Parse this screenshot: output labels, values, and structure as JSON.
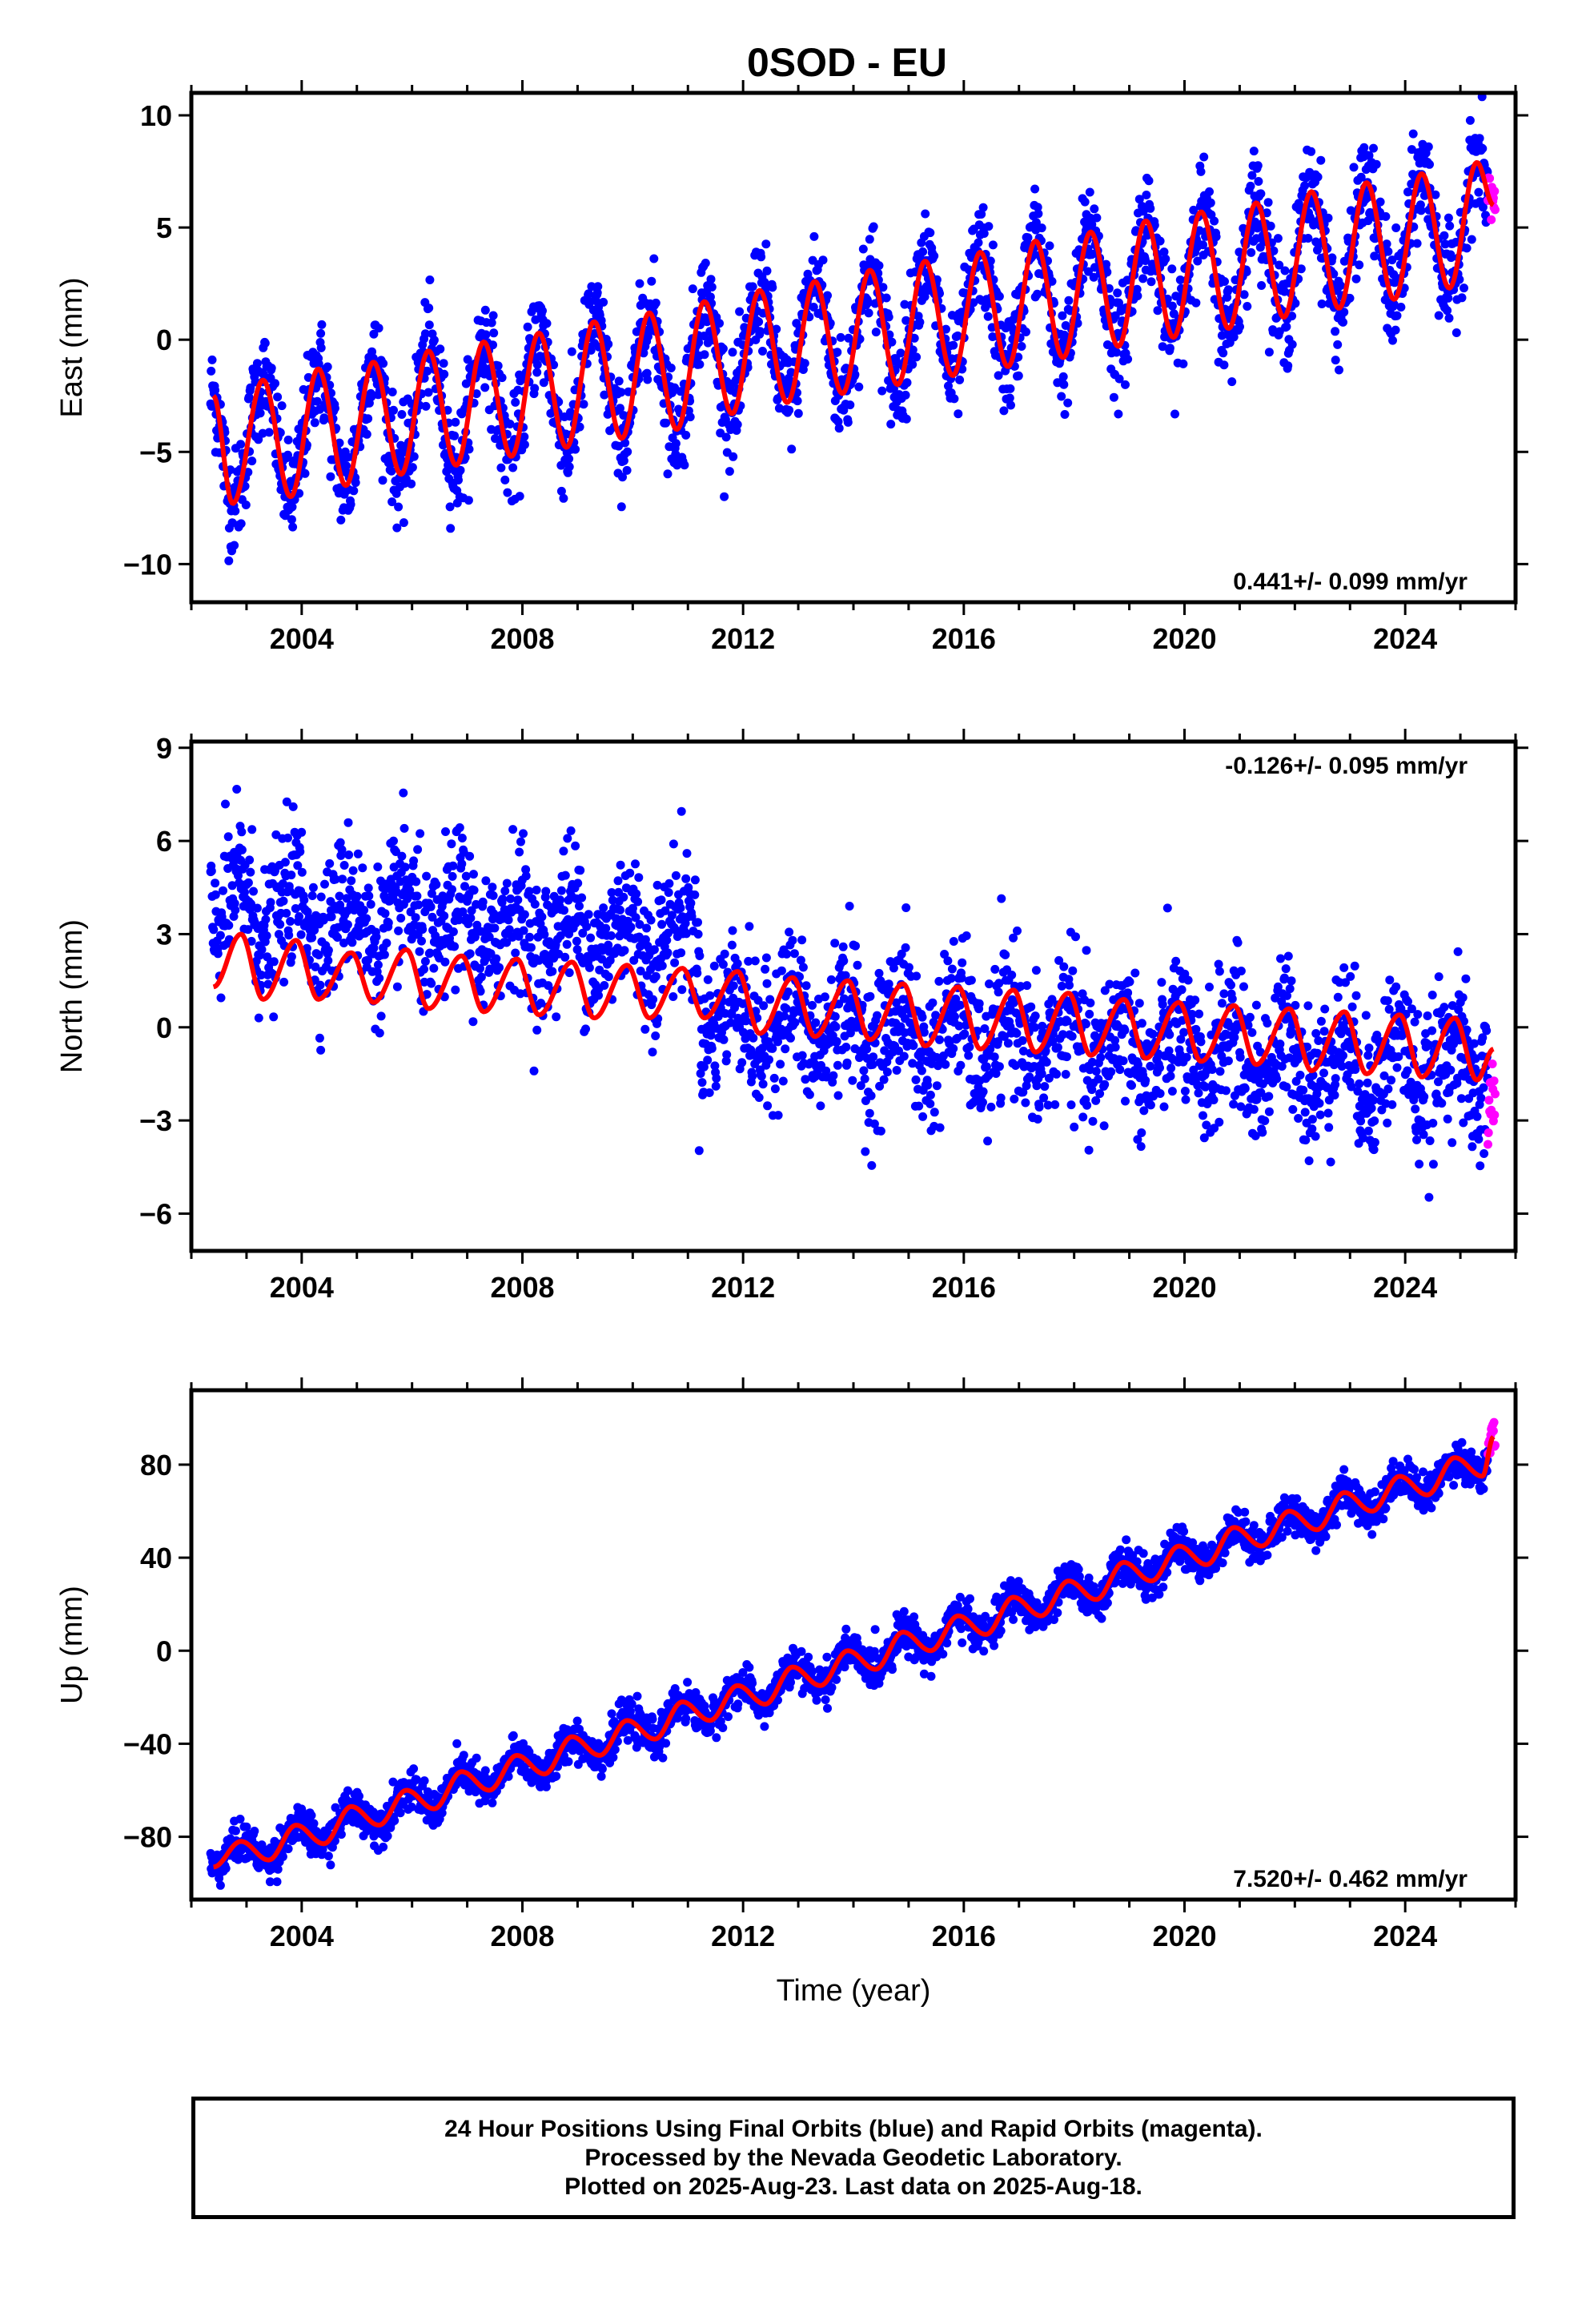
{
  "title": "0SOD - EU",
  "footer": {
    "line1": "24 Hour Positions Using Final Orbits (blue) and Rapid Orbits (magenta).",
    "line2": "Processed by the Nevada Geodetic Laboratory.",
    "line3": "Plotted on 2025-Aug-23. Last data on 2025-Aug-18."
  },
  "colors": {
    "final": "#0000ff",
    "rapid": "#ff00ff",
    "model": "#ff0000",
    "axes": "#000000"
  },
  "chart_data": [
    {
      "type": "scatter",
      "component": "east",
      "ylabel": "East (mm)",
      "xlabel": "",
      "xlim": [
        2002.0,
        2026.0
      ],
      "ylim": [
        -11.7,
        11.0
      ],
      "xticks": [
        2004,
        2008,
        2012,
        2016,
        2020,
        2024
      ],
      "yticks": [
        -10,
        -5,
        0,
        5,
        10
      ],
      "ytick_labels": [
        "−10",
        "−5",
        "0",
        "5",
        "10"
      ],
      "rate_label": "0.441+/- 0.099 mm/yr",
      "rate_position": "bottom-right",
      "series": [
        {
          "name": "Final Orbits",
          "color": "#0000ff",
          "marker": "dot"
        },
        {
          "name": "Rapid Orbits",
          "color": "#ff00ff",
          "marker": "dot"
        },
        {
          "name": "Model",
          "color": "#ff0000",
          "marker": "line"
        }
      ],
      "data_start": 2002.35,
      "data_end": 2025.63,
      "rapid_start": 2025.5,
      "model_samples": [
        {
          "x": 2002.4,
          "y": -2.5
        },
        {
          "x": 2002.75,
          "y": -7.3
        },
        {
          "x": 2003.3,
          "y": -1.8
        },
        {
          "x": 2003.8,
          "y": -7.0
        },
        {
          "x": 2004.3,
          "y": -1.3
        },
        {
          "x": 2004.8,
          "y": -6.5
        },
        {
          "x": 2005.3,
          "y": -1.0
        },
        {
          "x": 2005.8,
          "y": -6.0
        },
        {
          "x": 2006.3,
          "y": -0.5
        },
        {
          "x": 2006.8,
          "y": -5.6
        },
        {
          "x": 2007.3,
          "y": -0.1
        },
        {
          "x": 2007.8,
          "y": -5.2
        },
        {
          "x": 2008.3,
          "y": 0.3
        },
        {
          "x": 2008.8,
          "y": -4.8
        },
        {
          "x": 2009.3,
          "y": 0.8
        },
        {
          "x": 2009.8,
          "y": -4.4
        },
        {
          "x": 2010.3,
          "y": 1.2
        },
        {
          "x": 2010.8,
          "y": -4.0
        },
        {
          "x": 2011.3,
          "y": 1.7
        },
        {
          "x": 2011.8,
          "y": -3.3
        },
        {
          "x": 2012.3,
          "y": 2.2
        },
        {
          "x": 2012.8,
          "y": -2.8
        },
        {
          "x": 2013.3,
          "y": 2.6
        },
        {
          "x": 2013.8,
          "y": -2.4
        },
        {
          "x": 2014.3,
          "y": 3.1
        },
        {
          "x": 2014.8,
          "y": -2.0
        },
        {
          "x": 2015.3,
          "y": 3.5
        },
        {
          "x": 2015.8,
          "y": -1.6
        },
        {
          "x": 2016.3,
          "y": 3.9
        },
        {
          "x": 2016.8,
          "y": -1.2
        },
        {
          "x": 2017.3,
          "y": 4.4
        },
        {
          "x": 2017.8,
          "y": -0.8
        },
        {
          "x": 2018.3,
          "y": 4.8
        },
        {
          "x": 2018.8,
          "y": -0.3
        },
        {
          "x": 2019.3,
          "y": 5.3
        },
        {
          "x": 2019.8,
          "y": 0.1
        },
        {
          "x": 2020.3,
          "y": 5.7
        },
        {
          "x": 2020.8,
          "y": 0.5
        },
        {
          "x": 2021.3,
          "y": 6.1
        },
        {
          "x": 2021.8,
          "y": 1.0
        },
        {
          "x": 2022.3,
          "y": 6.6
        },
        {
          "x": 2022.8,
          "y": 1.4
        },
        {
          "x": 2023.3,
          "y": 7.0
        },
        {
          "x": 2023.8,
          "y": 1.8
        },
        {
          "x": 2024.3,
          "y": 7.4
        },
        {
          "x": 2024.8,
          "y": 2.3
        },
        {
          "x": 2025.3,
          "y": 7.9
        },
        {
          "x": 2025.6,
          "y": 6.0
        }
      ]
    },
    {
      "type": "scatter",
      "component": "north",
      "ylabel": "North (mm)",
      "xlabel": "",
      "xlim": [
        2002.0,
        2026.0
      ],
      "ylim": [
        -7.2,
        9.2
      ],
      "xticks": [
        2004,
        2008,
        2012,
        2016,
        2020,
        2024
      ],
      "yticks": [
        -6,
        -3,
        0,
        3,
        6,
        9
      ],
      "ytick_labels": [
        "−6",
        "−3",
        "0",
        "3",
        "6",
        "9"
      ],
      "rate_label": "-0.126+/- 0.095 mm/yr",
      "rate_position": "top-right",
      "series": [
        {
          "name": "Final Orbits",
          "color": "#0000ff",
          "marker": "dot"
        },
        {
          "name": "Rapid Orbits",
          "color": "#ff00ff",
          "marker": "dot"
        },
        {
          "name": "Model",
          "color": "#ff0000",
          "marker": "line"
        }
      ],
      "data_start": 2002.35,
      "data_end": 2025.63,
      "rapid_start": 2025.5,
      "offset_epoch": 2011.2,
      "model_samples": [
        {
          "x": 2002.4,
          "y": 1.3
        },
        {
          "x": 2002.9,
          "y": 3.0
        },
        {
          "x": 2003.3,
          "y": 0.9
        },
        {
          "x": 2003.9,
          "y": 2.8
        },
        {
          "x": 2004.3,
          "y": 0.9
        },
        {
          "x": 2004.9,
          "y": 2.4
        },
        {
          "x": 2005.3,
          "y": 0.8
        },
        {
          "x": 2005.9,
          "y": 2.5
        },
        {
          "x": 2006.3,
          "y": 0.6
        },
        {
          "x": 2006.9,
          "y": 2.3
        },
        {
          "x": 2007.3,
          "y": 0.5
        },
        {
          "x": 2007.9,
          "y": 2.2
        },
        {
          "x": 2008.3,
          "y": 0.4
        },
        {
          "x": 2008.9,
          "y": 2.1
        },
        {
          "x": 2009.3,
          "y": 0.3
        },
        {
          "x": 2009.9,
          "y": 2.0
        },
        {
          "x": 2010.3,
          "y": 0.3
        },
        {
          "x": 2010.9,
          "y": 1.9
        },
        {
          "x": 2011.3,
          "y": 0.3
        },
        {
          "x": 2011.9,
          "y": 1.8
        },
        {
          "x": 2012.3,
          "y": -0.2
        },
        {
          "x": 2012.9,
          "y": 1.6
        },
        {
          "x": 2013.3,
          "y": -0.3
        },
        {
          "x": 2013.9,
          "y": 1.5
        },
        {
          "x": 2014.3,
          "y": -0.4
        },
        {
          "x": 2014.9,
          "y": 1.4
        },
        {
          "x": 2015.3,
          "y": -0.6
        },
        {
          "x": 2015.9,
          "y": 1.3
        },
        {
          "x": 2016.3,
          "y": -0.7
        },
        {
          "x": 2016.9,
          "y": 1.2
        },
        {
          "x": 2017.3,
          "y": -0.8
        },
        {
          "x": 2017.9,
          "y": 1.1
        },
        {
          "x": 2018.3,
          "y": -0.9
        },
        {
          "x": 2018.9,
          "y": 0.9
        },
        {
          "x": 2019.3,
          "y": -1.0
        },
        {
          "x": 2019.9,
          "y": 0.8
        },
        {
          "x": 2020.3,
          "y": -1.1
        },
        {
          "x": 2020.9,
          "y": 0.7
        },
        {
          "x": 2021.3,
          "y": -1.2
        },
        {
          "x": 2021.9,
          "y": 0.6
        },
        {
          "x": 2022.3,
          "y": -1.4
        },
        {
          "x": 2022.9,
          "y": 0.5
        },
        {
          "x": 2023.3,
          "y": -1.5
        },
        {
          "x": 2023.9,
          "y": 0.4
        },
        {
          "x": 2024.3,
          "y": -1.6
        },
        {
          "x": 2024.9,
          "y": 0.3
        },
        {
          "x": 2025.3,
          "y": -1.7
        },
        {
          "x": 2025.6,
          "y": -0.7
        }
      ]
    },
    {
      "type": "scatter",
      "component": "up",
      "ylabel": "Up (mm)",
      "xlabel": "Time (year)",
      "xlim": [
        2002.0,
        2026.0
      ],
      "ylim": [
        -107,
        112
      ],
      "xticks": [
        2004,
        2008,
        2012,
        2016,
        2020,
        2024
      ],
      "yticks": [
        -80,
        -40,
        0,
        40,
        80
      ],
      "ytick_labels": [
        "−80",
        "−40",
        "0",
        "40",
        "80"
      ],
      "rate_label": "7.520+/- 0.462 mm/yr",
      "rate_position": "bottom-right",
      "series": [
        {
          "name": "Final Orbits",
          "color": "#0000ff",
          "marker": "dot"
        },
        {
          "name": "Rapid Orbits",
          "color": "#ff00ff",
          "marker": "dot"
        },
        {
          "name": "Model",
          "color": "#ff0000",
          "marker": "line"
        }
      ],
      "data_start": 2002.35,
      "data_end": 2025.63,
      "rapid_start": 2025.5,
      "model_samples": [
        {
          "x": 2002.4,
          "y": -93
        },
        {
          "x": 2002.9,
          "y": -82
        },
        {
          "x": 2003.4,
          "y": -90
        },
        {
          "x": 2003.9,
          "y": -75
        },
        {
          "x": 2004.4,
          "y": -83
        },
        {
          "x": 2004.9,
          "y": -67
        },
        {
          "x": 2005.4,
          "y": -75
        },
        {
          "x": 2005.9,
          "y": -60
        },
        {
          "x": 2006.4,
          "y": -68
        },
        {
          "x": 2006.9,
          "y": -52
        },
        {
          "x": 2007.4,
          "y": -60
        },
        {
          "x": 2007.9,
          "y": -45
        },
        {
          "x": 2008.4,
          "y": -53
        },
        {
          "x": 2008.9,
          "y": -37
        },
        {
          "x": 2009.4,
          "y": -45
        },
        {
          "x": 2009.9,
          "y": -30
        },
        {
          "x": 2010.4,
          "y": -38
        },
        {
          "x": 2010.9,
          "y": -22
        },
        {
          "x": 2011.4,
          "y": -30
        },
        {
          "x": 2011.9,
          "y": -15
        },
        {
          "x": 2012.4,
          "y": -23
        },
        {
          "x": 2012.9,
          "y": -7
        },
        {
          "x": 2013.4,
          "y": -15
        },
        {
          "x": 2013.9,
          "y": 0
        },
        {
          "x": 2014.4,
          "y": -8
        },
        {
          "x": 2014.9,
          "y": 8
        },
        {
          "x": 2015.4,
          "y": 0
        },
        {
          "x": 2015.9,
          "y": 15
        },
        {
          "x": 2016.4,
          "y": 7
        },
        {
          "x": 2016.9,
          "y": 23
        },
        {
          "x": 2017.4,
          "y": 15
        },
        {
          "x": 2017.9,
          "y": 30
        },
        {
          "x": 2018.4,
          "y": 22
        },
        {
          "x": 2018.9,
          "y": 38
        },
        {
          "x": 2019.4,
          "y": 30
        },
        {
          "x": 2019.9,
          "y": 45
        },
        {
          "x": 2020.4,
          "y": 37
        },
        {
          "x": 2020.9,
          "y": 53
        },
        {
          "x": 2021.4,
          "y": 45
        },
        {
          "x": 2021.9,
          "y": 60
        },
        {
          "x": 2022.4,
          "y": 52
        },
        {
          "x": 2022.9,
          "y": 68
        },
        {
          "x": 2023.4,
          "y": 60
        },
        {
          "x": 2023.9,
          "y": 75
        },
        {
          "x": 2024.4,
          "y": 67
        },
        {
          "x": 2024.9,
          "y": 83
        },
        {
          "x": 2025.4,
          "y": 75
        },
        {
          "x": 2025.6,
          "y": 92
        }
      ]
    }
  ]
}
